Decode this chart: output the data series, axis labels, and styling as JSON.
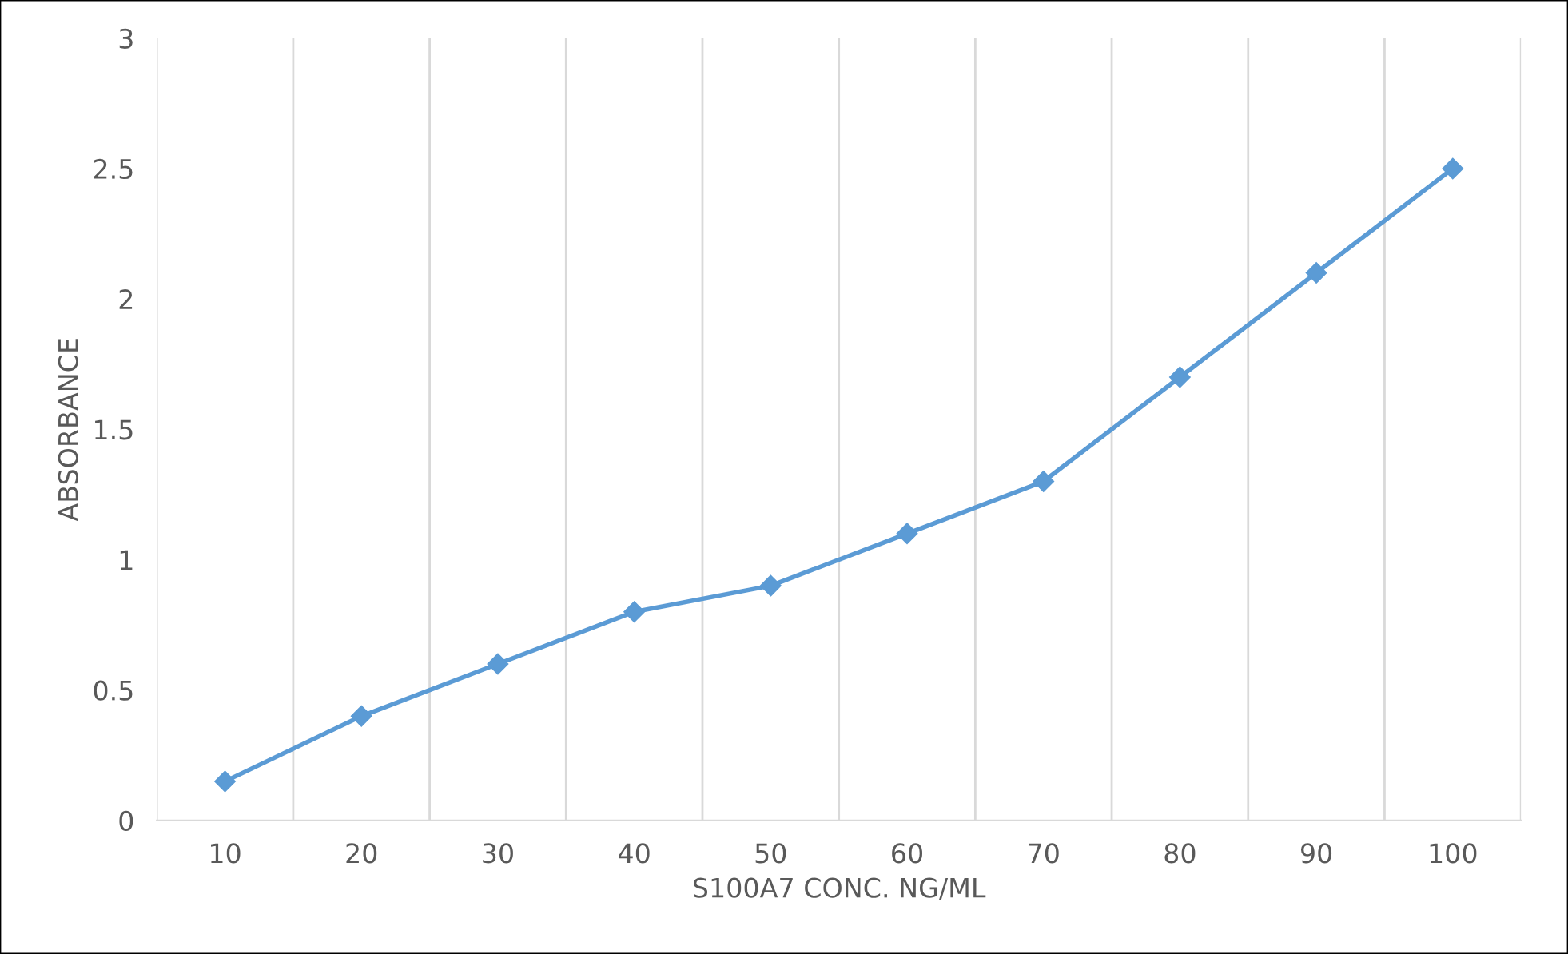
{
  "chart_data": {
    "type": "line",
    "xlabel": "S100A7 CONC. NG/ML",
    "ylabel": "ABSORBANCE",
    "categories": [
      "10",
      "20",
      "30",
      "40",
      "50",
      "60",
      "70",
      "80",
      "90",
      "100"
    ],
    "series": [
      {
        "color": "#5b9bd5",
        "values": [
          0.15,
          0.4,
          0.6,
          0.8,
          0.9,
          1.1,
          1.3,
          1.7,
          2.1,
          2.5
        ]
      }
    ],
    "ylim": [
      0,
      3
    ],
    "yticks": [
      0,
      0.5,
      1,
      1.5,
      2,
      2.5,
      3
    ],
    "grid": "x",
    "marker": "diamond",
    "line_style": "solid",
    "legend": false
  }
}
